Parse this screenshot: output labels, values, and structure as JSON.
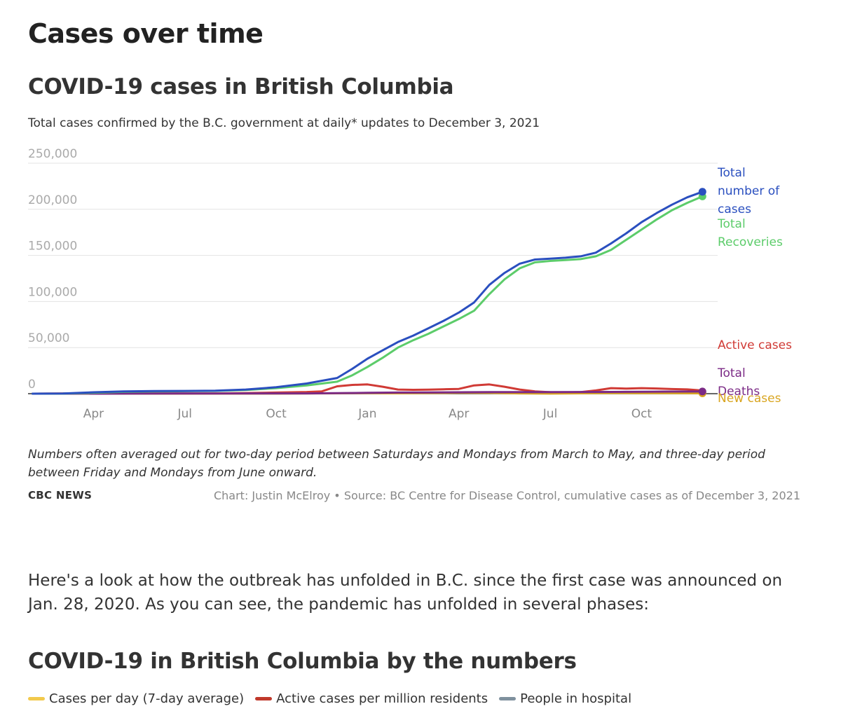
{
  "page": {
    "section_title": "Cases over time",
    "chart_title": "COVID-19 cases in British Columbia",
    "chart_subtitle": "Total cases confirmed by the B.C. government at daily* updates to December 3, 2021",
    "note": "Numbers often averaged out for two-day period between Saturdays and Mondays from March to May, and three-day period between Friday and Mondays from June onward.",
    "brand": "CBC NEWS",
    "credit": "Chart: Justin McElroy • Source: BC Centre for Disease Control, cumulative cases as of December 3, 2021",
    "intro": "Here's a look at how the outbreak has unfolded in B.C. since the first case was announced on Jan. 28, 2020. As you can see, the pandemic has unfolded in several phases:",
    "numbers_title": "COVID-19 in British Columbia by the numbers",
    "legend": [
      {
        "label": "Cases per day (7-day average)",
        "color": "#f2c94c"
      },
      {
        "label": "Active cases per million residents",
        "color": "#c0392b"
      },
      {
        "label": "People in hospital",
        "color": "#7f919e"
      }
    ]
  },
  "chart_data": {
    "type": "line",
    "x_ticks": [
      "Apr",
      "Jul",
      "Oct",
      "Jan",
      "Apr",
      "Jul",
      "Oct"
    ],
    "x_tick_months": [
      2,
      5,
      8,
      11,
      14,
      17,
      20
    ],
    "x_range": [
      -0.15,
      22.5
    ],
    "y_ticks": [
      250000,
      200000,
      150000,
      100000,
      50000,
      0
    ],
    "y_tick_labels": [
      "250,000",
      "200,000",
      "150,000",
      "100,000",
      "50,000",
      "0"
    ],
    "ylim": [
      0,
      250000
    ],
    "grid": true,
    "series": [
      {
        "name": "Total number of cases",
        "label_lines": [
          "Total",
          "number of",
          "cases"
        ],
        "color": "#2a4fbf",
        "endpoint": true,
        "points": [
          [
            0,
            0
          ],
          [
            1,
            200
          ],
          [
            2,
            1500
          ],
          [
            3,
            2500
          ],
          [
            4,
            2800
          ],
          [
            5,
            3000
          ],
          [
            6,
            3300
          ],
          [
            7,
            4500
          ],
          [
            8,
            7000
          ],
          [
            9,
            11000
          ],
          [
            10,
            17000
          ],
          [
            10.5,
            27000
          ],
          [
            11,
            38000
          ],
          [
            11.5,
            47000
          ],
          [
            12,
            56000
          ],
          [
            12.5,
            63000
          ],
          [
            13,
            71000
          ],
          [
            13.5,
            79000
          ],
          [
            14,
            88000
          ],
          [
            14.5,
            99000
          ],
          [
            15,
            118000
          ],
          [
            15.5,
            131000
          ],
          [
            16,
            141000
          ],
          [
            16.5,
            145500
          ],
          [
            17,
            146500
          ],
          [
            17.5,
            147500
          ],
          [
            18,
            149000
          ],
          [
            18.5,
            153000
          ],
          [
            19,
            163000
          ],
          [
            19.5,
            174000
          ],
          [
            20,
            186000
          ],
          [
            20.5,
            196000
          ],
          [
            21,
            205000
          ],
          [
            21.5,
            213000
          ],
          [
            22,
            219000
          ]
        ]
      },
      {
        "name": "Total Recoveries",
        "label_lines": [
          "Total",
          "Recoveries"
        ],
        "color": "#5ccc6a",
        "endpoint": true,
        "points": [
          [
            0,
            0
          ],
          [
            1,
            100
          ],
          [
            2,
            1000
          ],
          [
            3,
            2000
          ],
          [
            4,
            2400
          ],
          [
            5,
            2700
          ],
          [
            6,
            3000
          ],
          [
            7,
            4000
          ],
          [
            8,
            6000
          ],
          [
            9,
            9000
          ],
          [
            10,
            13000
          ],
          [
            10.5,
            20000
          ],
          [
            11,
            29000
          ],
          [
            11.5,
            39000
          ],
          [
            12,
            50000
          ],
          [
            12.5,
            58000
          ],
          [
            13,
            65000
          ],
          [
            13.5,
            73000
          ],
          [
            14,
            81000
          ],
          [
            14.5,
            90000
          ],
          [
            15,
            108000
          ],
          [
            15.5,
            124000
          ],
          [
            16,
            136000
          ],
          [
            16.5,
            142500
          ],
          [
            17,
            144000
          ],
          [
            17.5,
            145000
          ],
          [
            18,
            146000
          ],
          [
            18.5,
            149000
          ],
          [
            19,
            156000
          ],
          [
            19.5,
            167000
          ],
          [
            20,
            178000
          ],
          [
            20.5,
            189000
          ],
          [
            21,
            199000
          ],
          [
            21.5,
            207000
          ],
          [
            22,
            214000
          ]
        ]
      },
      {
        "name": "Active cases",
        "label_lines": [
          "Active cases"
        ],
        "color": "#d03a35",
        "endpoint": false,
        "points": [
          [
            0,
            0
          ],
          [
            2,
            400
          ],
          [
            3,
            300
          ],
          [
            5,
            150
          ],
          [
            6,
            300
          ],
          [
            7,
            700
          ],
          [
            8,
            1200
          ],
          [
            9,
            1800
          ],
          [
            9.5,
            2500
          ],
          [
            10,
            8000
          ],
          [
            10.5,
            9500
          ],
          [
            11,
            10000
          ],
          [
            11.5,
            7500
          ],
          [
            12,
            4500
          ],
          [
            12.5,
            4200
          ],
          [
            13,
            4300
          ],
          [
            13.5,
            4800
          ],
          [
            14,
            5200
          ],
          [
            14.5,
            9000
          ],
          [
            15,
            10000
          ],
          [
            15.5,
            7500
          ],
          [
            16,
            4500
          ],
          [
            16.5,
            2500
          ],
          [
            17,
            1600
          ],
          [
            17.5,
            1400
          ],
          [
            18,
            1700
          ],
          [
            18.5,
            3500
          ],
          [
            19,
            6000
          ],
          [
            19.5,
            5500
          ],
          [
            20,
            6000
          ],
          [
            20.5,
            5600
          ],
          [
            21,
            5000
          ],
          [
            21.5,
            4600
          ],
          [
            22,
            3400
          ]
        ]
      },
      {
        "name": "Total Deaths",
        "label_lines": [
          "Total",
          "Deaths"
        ],
        "color": "#7b2a86",
        "endpoint": true,
        "points": [
          [
            0,
            0
          ],
          [
            3,
            100
          ],
          [
            6,
            200
          ],
          [
            9,
            300
          ],
          [
            10,
            500
          ],
          [
            11,
            900
          ],
          [
            12,
            1200
          ],
          [
            13,
            1400
          ],
          [
            14,
            1500
          ],
          [
            15,
            1650
          ],
          [
            16,
            1750
          ],
          [
            17,
            1780
          ],
          [
            18,
            1800
          ],
          [
            19,
            1900
          ],
          [
            20,
            2100
          ],
          [
            21,
            2250
          ],
          [
            22,
            2350
          ]
        ]
      },
      {
        "name": "New cases",
        "label_lines": [
          "New cases"
        ],
        "color": "#d9a520",
        "endpoint": true,
        "points": [
          [
            0,
            0
          ],
          [
            2,
            50
          ],
          [
            8,
            100
          ],
          [
            10,
            400
          ],
          [
            11,
            600
          ],
          [
            12,
            400
          ],
          [
            14,
            900
          ],
          [
            15,
            800
          ],
          [
            16,
            300
          ],
          [
            17,
            100
          ],
          [
            18,
            400
          ],
          [
            19,
            700
          ],
          [
            20,
            600
          ],
          [
            21,
            500
          ],
          [
            22,
            400
          ]
        ]
      }
    ]
  }
}
